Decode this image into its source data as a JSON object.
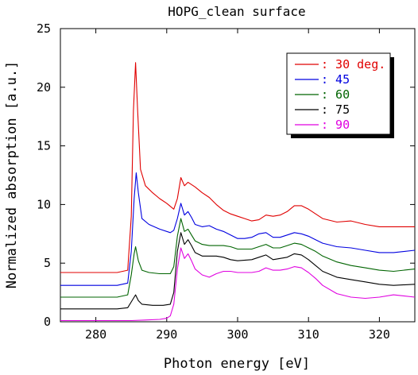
{
  "chart_data": {
    "type": "line",
    "title": "HOPG_clean surface",
    "xlabel": "Photon energy [eV]",
    "ylabel": "Normalized absorption [a.u.]",
    "xlim": [
      275,
      325
    ],
    "ylim": [
      0,
      25
    ],
    "xticks": [
      280,
      290,
      300,
      310,
      320
    ],
    "yticks": [
      0,
      5,
      10,
      15,
      20,
      25
    ],
    "grid": false,
    "legend_position": "top-right",
    "series": [
      {
        "name": ": 30 deg.",
        "color": "#e00000",
        "points": [
          [
            275,
            4.2
          ],
          [
            283,
            4.2
          ],
          [
            284.5,
            4.4
          ],
          [
            285,
            9
          ],
          [
            285.3,
            18
          ],
          [
            285.6,
            22.1
          ],
          [
            285.9,
            18
          ],
          [
            286.3,
            13
          ],
          [
            287,
            11.6
          ],
          [
            288,
            11.0
          ],
          [
            289,
            10.5
          ],
          [
            290,
            10.1
          ],
          [
            291,
            9.6
          ],
          [
            291.5,
            10.5
          ],
          [
            292,
            12.3
          ],
          [
            292.5,
            11.6
          ],
          [
            293,
            11.9
          ],
          [
            294,
            11.5
          ],
          [
            295,
            11.0
          ],
          [
            296,
            10.6
          ],
          [
            297,
            10.0
          ],
          [
            298,
            9.5
          ],
          [
            299,
            9.2
          ],
          [
            300,
            9.0
          ],
          [
            301,
            8.8
          ],
          [
            302,
            8.6
          ],
          [
            303,
            8.7
          ],
          [
            304,
            9.1
          ],
          [
            305,
            9.0
          ],
          [
            306,
            9.1
          ],
          [
            307,
            9.4
          ],
          [
            308,
            9.9
          ],
          [
            309,
            9.9
          ],
          [
            310,
            9.6
          ],
          [
            311,
            9.2
          ],
          [
            312,
            8.8
          ],
          [
            314,
            8.5
          ],
          [
            316,
            8.6
          ],
          [
            318,
            8.3
          ],
          [
            320,
            8.1
          ],
          [
            322,
            8.1
          ],
          [
            325,
            8.1
          ]
        ]
      },
      {
        "name": ": 45",
        "color": "#0000e0",
        "points": [
          [
            275,
            3.1
          ],
          [
            283,
            3.1
          ],
          [
            284.5,
            3.3
          ],
          [
            285,
            6
          ],
          [
            285.4,
            10.5
          ],
          [
            285.7,
            12.7
          ],
          [
            286,
            11
          ],
          [
            286.5,
            8.8
          ],
          [
            287.5,
            8.3
          ],
          [
            289,
            7.9
          ],
          [
            290.5,
            7.6
          ],
          [
            291,
            7.8
          ],
          [
            291.5,
            8.8
          ],
          [
            292,
            10.1
          ],
          [
            292.5,
            9.1
          ],
          [
            293,
            9.4
          ],
          [
            293.5,
            8.9
          ],
          [
            294,
            8.3
          ],
          [
            295,
            8.1
          ],
          [
            296,
            8.2
          ],
          [
            297,
            7.9
          ],
          [
            298,
            7.7
          ],
          [
            299,
            7.4
          ],
          [
            300,
            7.1
          ],
          [
            301,
            7.1
          ],
          [
            302,
            7.2
          ],
          [
            303,
            7.5
          ],
          [
            304,
            7.6
          ],
          [
            305,
            7.2
          ],
          [
            306,
            7.2
          ],
          [
            307,
            7.4
          ],
          [
            308,
            7.6
          ],
          [
            309,
            7.5
          ],
          [
            310,
            7.3
          ],
          [
            311,
            7.0
          ],
          [
            312,
            6.7
          ],
          [
            314,
            6.4
          ],
          [
            316,
            6.3
          ],
          [
            318,
            6.1
          ],
          [
            320,
            5.9
          ],
          [
            322,
            5.9
          ],
          [
            325,
            6.1
          ]
        ]
      },
      {
        "name": ": 60",
        "color": "#006400",
        "points": [
          [
            275,
            2.1
          ],
          [
            283,
            2.1
          ],
          [
            284.5,
            2.3
          ],
          [
            285,
            4
          ],
          [
            285.4,
            5.8
          ],
          [
            285.6,
            6.4
          ],
          [
            286,
            5.2
          ],
          [
            286.5,
            4.4
          ],
          [
            287.5,
            4.2
          ],
          [
            289,
            4.1
          ],
          [
            290.5,
            4.1
          ],
          [
            291,
            4.7
          ],
          [
            291.5,
            7.3
          ],
          [
            292,
            8.8
          ],
          [
            292.5,
            7.7
          ],
          [
            293,
            7.9
          ],
          [
            293.5,
            7.4
          ],
          [
            294,
            6.9
          ],
          [
            295,
            6.6
          ],
          [
            296,
            6.5
          ],
          [
            297,
            6.5
          ],
          [
            298,
            6.5
          ],
          [
            299,
            6.4
          ],
          [
            300,
            6.2
          ],
          [
            302,
            6.2
          ],
          [
            303,
            6.4
          ],
          [
            304,
            6.6
          ],
          [
            305,
            6.3
          ],
          [
            306,
            6.3
          ],
          [
            307,
            6.5
          ],
          [
            308,
            6.7
          ],
          [
            309,
            6.6
          ],
          [
            310,
            6.3
          ],
          [
            311,
            6.0
          ],
          [
            312,
            5.6
          ],
          [
            314,
            5.1
          ],
          [
            316,
            4.8
          ],
          [
            318,
            4.6
          ],
          [
            320,
            4.4
          ],
          [
            322,
            4.3
          ],
          [
            325,
            4.5
          ]
        ]
      },
      {
        "name": ": 75",
        "color": "#000000",
        "points": [
          [
            275,
            1.1
          ],
          [
            283,
            1.1
          ],
          [
            284.5,
            1.2
          ],
          [
            285.2,
            1.9
          ],
          [
            285.6,
            2.3
          ],
          [
            286,
            1.8
          ],
          [
            286.5,
            1.5
          ],
          [
            288,
            1.4
          ],
          [
            289.5,
            1.4
          ],
          [
            290.5,
            1.5
          ],
          [
            291,
            2.5
          ],
          [
            291.5,
            6
          ],
          [
            292,
            7.6
          ],
          [
            292.5,
            6.6
          ],
          [
            293,
            7.0
          ],
          [
            293.5,
            6.5
          ],
          [
            294,
            5.9
          ],
          [
            295,
            5.6
          ],
          [
            296,
            5.6
          ],
          [
            297,
            5.6
          ],
          [
            298,
            5.5
          ],
          [
            299,
            5.3
          ],
          [
            300,
            5.2
          ],
          [
            302,
            5.3
          ],
          [
            303,
            5.5
          ],
          [
            304,
            5.7
          ],
          [
            305,
            5.3
          ],
          [
            306,
            5.4
          ],
          [
            307,
            5.5
          ],
          [
            308,
            5.8
          ],
          [
            309,
            5.7
          ],
          [
            310,
            5.3
          ],
          [
            311,
            4.8
          ],
          [
            312,
            4.3
          ],
          [
            314,
            3.8
          ],
          [
            316,
            3.6
          ],
          [
            318,
            3.4
          ],
          [
            320,
            3.2
          ],
          [
            322,
            3.1
          ],
          [
            325,
            3.2
          ]
        ]
      },
      {
        "name": ": 90",
        "color": "#e000e0",
        "points": [
          [
            275,
            0.1
          ],
          [
            283,
            0.1
          ],
          [
            285,
            0.1
          ],
          [
            287,
            0.15
          ],
          [
            289,
            0.2
          ],
          [
            290,
            0.3
          ],
          [
            290.5,
            0.5
          ],
          [
            291,
            1.5
          ],
          [
            291.5,
            4.5
          ],
          [
            292,
            6.3
          ],
          [
            292.5,
            5.4
          ],
          [
            293,
            5.8
          ],
          [
            293.5,
            5.2
          ],
          [
            294,
            4.5
          ],
          [
            295,
            4.0
          ],
          [
            296,
            3.8
          ],
          [
            297,
            4.1
          ],
          [
            298,
            4.3
          ],
          [
            299,
            4.3
          ],
          [
            300,
            4.2
          ],
          [
            302,
            4.2
          ],
          [
            303,
            4.3
          ],
          [
            304,
            4.6
          ],
          [
            305,
            4.4
          ],
          [
            306,
            4.4
          ],
          [
            307,
            4.5
          ],
          [
            308,
            4.7
          ],
          [
            309,
            4.6
          ],
          [
            310,
            4.2
          ],
          [
            311,
            3.7
          ],
          [
            312,
            3.1
          ],
          [
            314,
            2.4
          ],
          [
            316,
            2.1
          ],
          [
            318,
            2.0
          ],
          [
            320,
            2.1
          ],
          [
            322,
            2.3
          ],
          [
            325,
            2.1
          ]
        ]
      }
    ]
  }
}
